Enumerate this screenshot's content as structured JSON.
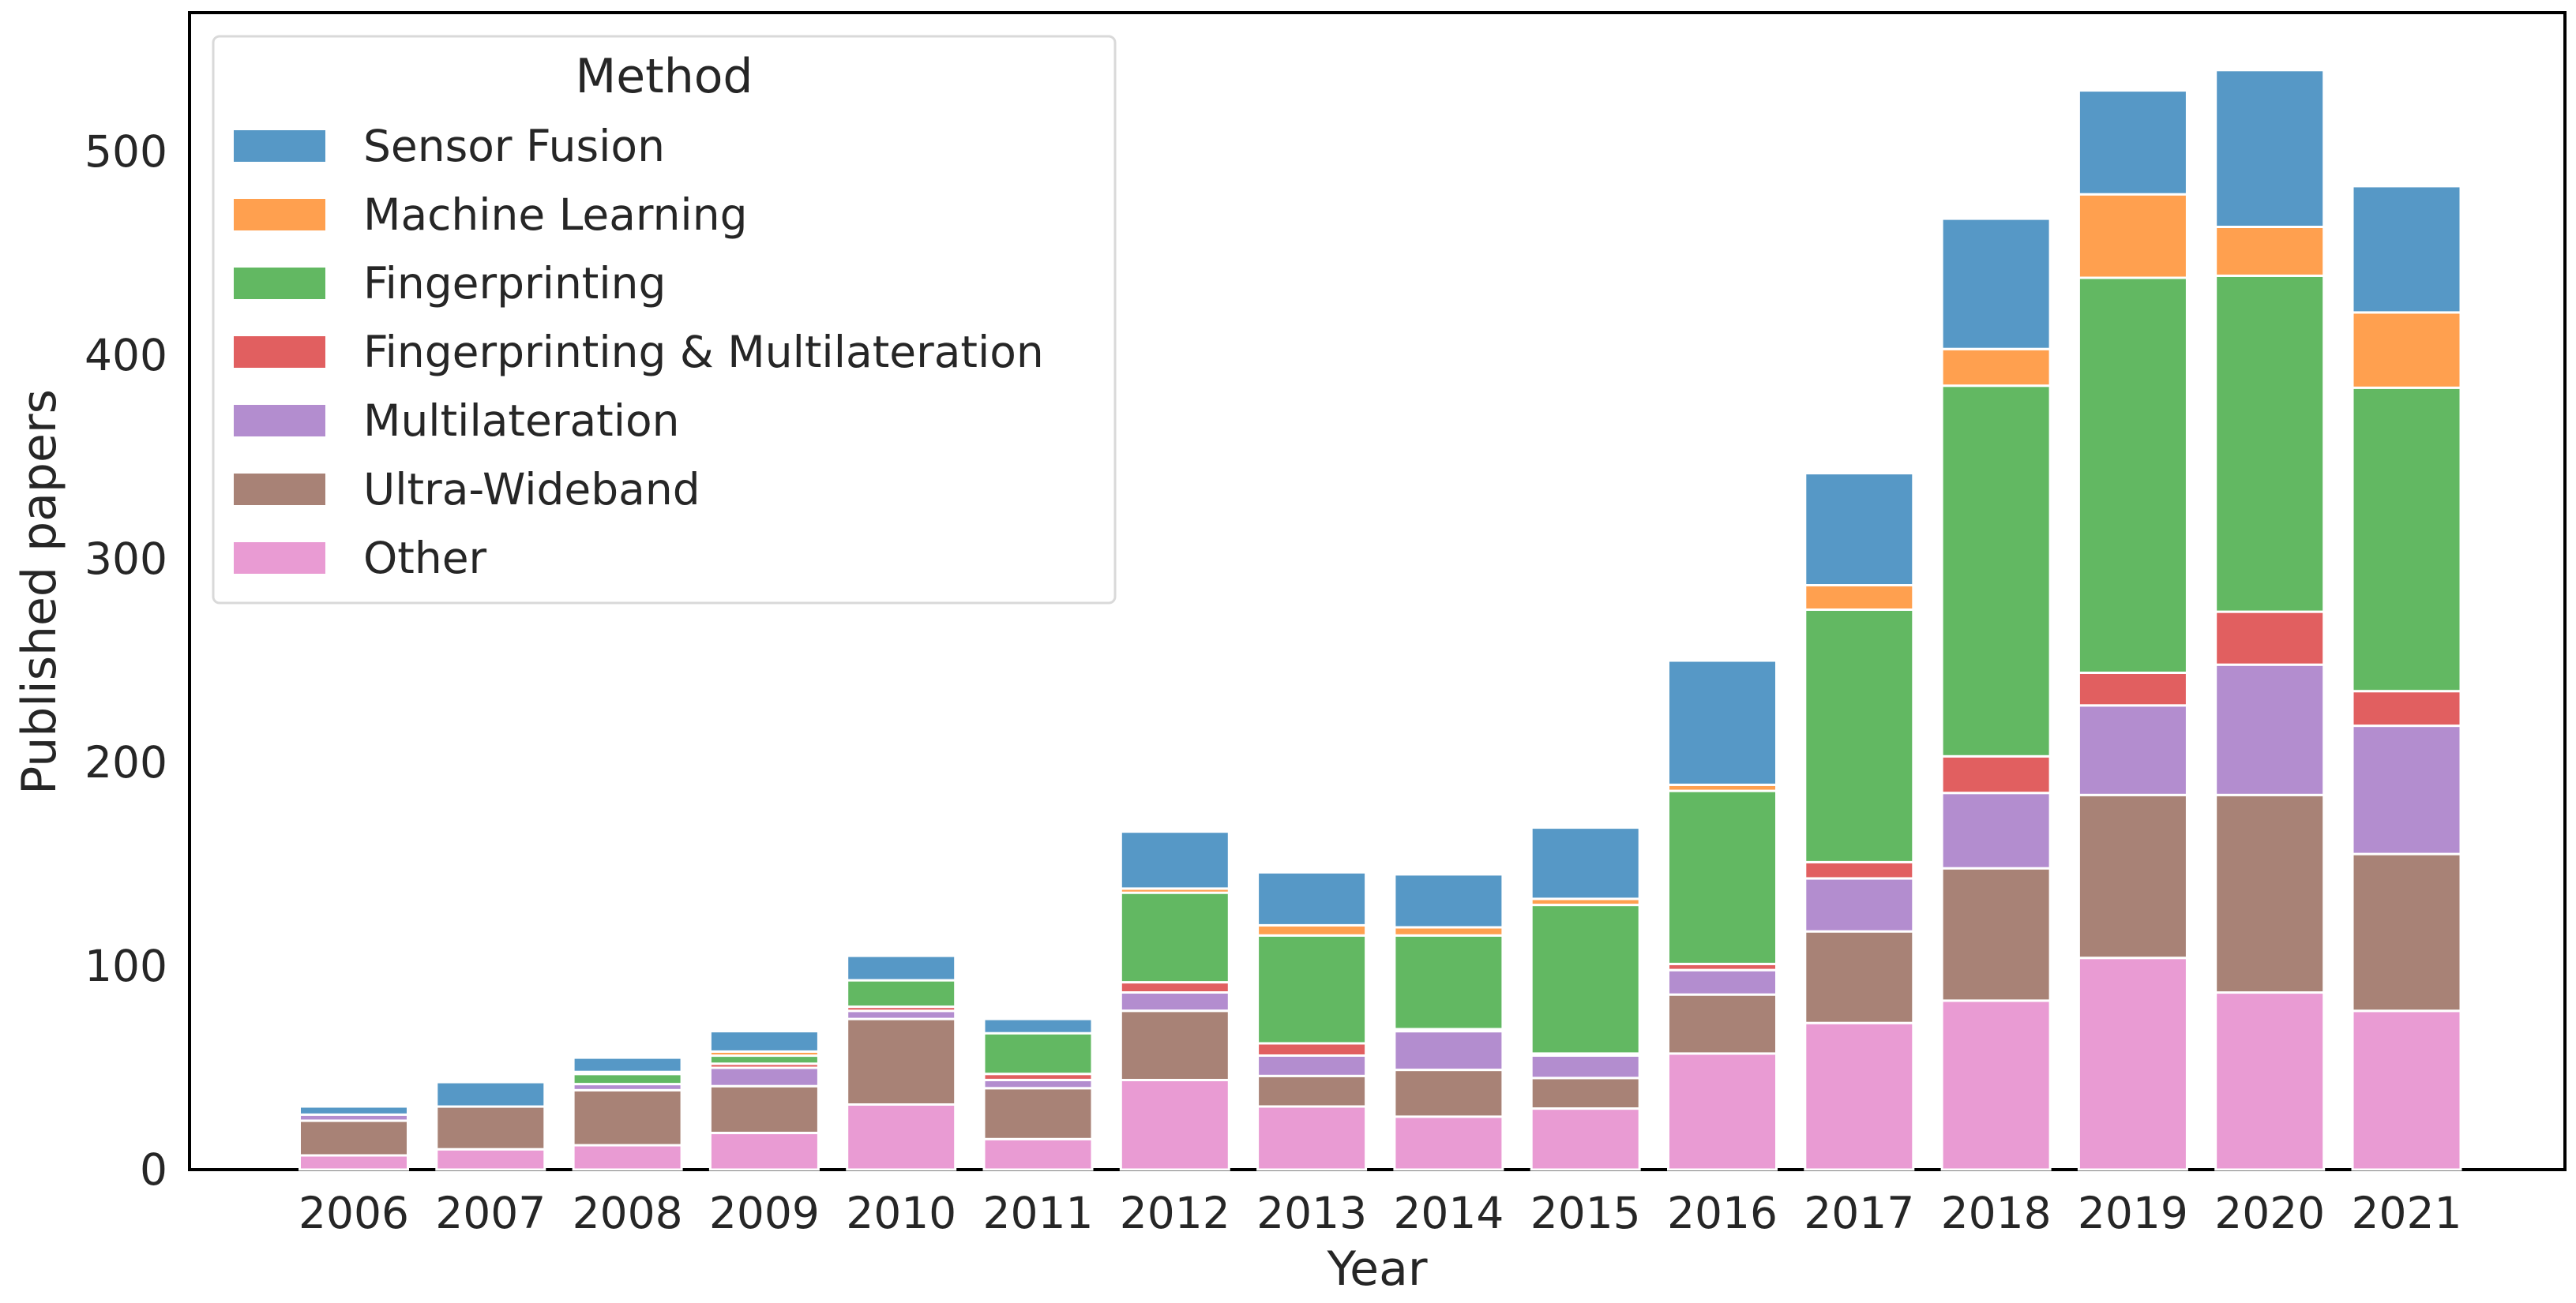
{
  "chart_data": {
    "type": "bar",
    "stacked": true,
    "xlabel": "Year",
    "ylabel": "Published papers",
    "ylim": [
      0,
      570
    ],
    "yticks": [
      0,
      100,
      200,
      300,
      400,
      500
    ],
    "grid": false,
    "legend": {
      "title": "Method",
      "placement": "top-left"
    },
    "categories": [
      "2006",
      "2007",
      "2008",
      "2009",
      "2010",
      "2011",
      "2012",
      "2013",
      "2014",
      "2015",
      "2016",
      "2017",
      "2018",
      "2019",
      "2020",
      "2021"
    ],
    "series": [
      {
        "name": "Other",
        "color": "#e99bd3",
        "values": [
          7,
          10,
          12,
          18,
          32,
          15,
          44,
          31,
          26,
          30,
          57,
          72,
          83,
          104,
          87,
          78
        ]
      },
      {
        "name": "Ultra-Wideband",
        "color": "#a88276",
        "values": [
          17,
          21,
          27,
          23,
          42,
          25,
          34,
          15,
          23,
          15,
          29,
          45,
          65,
          80,
          97,
          77
        ]
      },
      {
        "name": "Multilateration",
        "color": "#b38dcf",
        "values": [
          3,
          0,
          3,
          9,
          4,
          4,
          9,
          10,
          19,
          11,
          12,
          26,
          37,
          44,
          64,
          63
        ]
      },
      {
        "name": "Fingerprinting & Multilateration",
        "color": "#e15f60",
        "values": [
          0,
          0,
          0,
          2,
          2,
          3,
          5,
          6,
          1,
          1,
          3,
          8,
          18,
          16,
          26,
          17
        ]
      },
      {
        "name": "Fingerprinting",
        "color": "#62b862",
        "values": [
          0,
          0,
          5,
          4,
          13,
          20,
          44,
          53,
          46,
          73,
          85,
          124,
          182,
          194,
          165,
          149
        ]
      },
      {
        "name": "Machine Learning",
        "color": "#ffa04f",
        "values": [
          0,
          0,
          1,
          2,
          0,
          0,
          2,
          5,
          4,
          3,
          3,
          12,
          18,
          41,
          24,
          37
        ]
      },
      {
        "name": "Sensor Fusion",
        "color": "#5698c6",
        "values": [
          4,
          12,
          7,
          10,
          12,
          7,
          28,
          26,
          26,
          35,
          61,
          55,
          64,
          51,
          77,
          62
        ]
      }
    ],
    "legend_order": [
      "Sensor Fusion",
      "Machine Learning",
      "Fingerprinting",
      "Fingerprinting & Multilateration",
      "Multilateration",
      "Ultra-Wideband",
      "Other"
    ]
  }
}
